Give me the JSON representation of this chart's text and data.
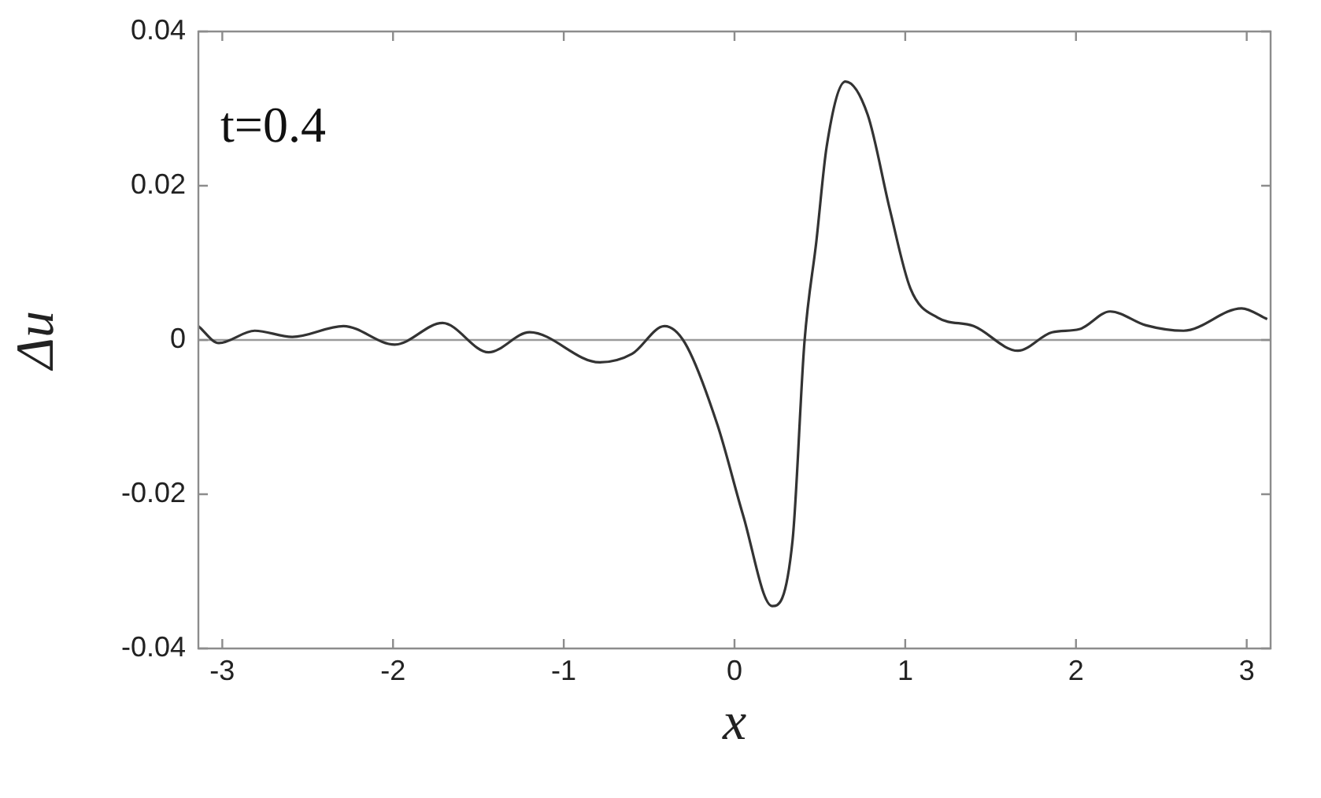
{
  "chart_data": {
    "type": "line",
    "xlabel": "x",
    "ylabel": "Δu",
    "annotations": [
      "t=0.4"
    ],
    "xlim": [
      -3.14,
      3.14
    ],
    "xticks": [
      -3,
      -2,
      -1,
      0,
      1,
      2,
      3
    ],
    "ylim": [
      -0.04,
      0.04
    ],
    "yticks": [
      -0.04,
      -0.02,
      0,
      0.02,
      0.04
    ],
    "grid": false,
    "legend": false,
    "marker": "none",
    "line_style": "solid",
    "ref_lines": [
      {
        "axis": "y",
        "value": 0,
        "color": "#9a9a9a"
      }
    ],
    "series": [
      {
        "color": "#333333",
        "x": [
          -3.14,
          -3.02,
          -2.81,
          -2.59,
          -2.29,
          -1.99,
          -1.71,
          -1.44,
          -1.2,
          -0.79,
          -0.6,
          -0.41,
          -0.29,
          -0.1,
          0.05,
          0.22,
          0.34,
          0.41,
          0.48,
          0.54,
          0.65,
          0.78,
          0.91,
          1.03,
          1.19,
          1.4,
          1.66,
          1.86,
          2.02,
          2.2,
          2.41,
          2.63,
          2.97,
          3.12
        ],
        "values": [
          0.0018,
          -0.0004,
          0.0012,
          0.0004,
          0.0018,
          -0.0006,
          0.0022,
          -0.0016,
          0.001,
          -0.0029,
          -0.0018,
          0.0018,
          -0.0004,
          -0.011,
          -0.0227,
          -0.0345,
          -0.026,
          -0.0002,
          0.0129,
          0.0251,
          0.0335,
          0.0292,
          0.0169,
          0.0067,
          0.0029,
          0.0018,
          -0.0014,
          0.001,
          0.0014,
          0.0037,
          0.0019,
          0.0012,
          0.0041,
          0.0027
        ]
      }
    ]
  }
}
